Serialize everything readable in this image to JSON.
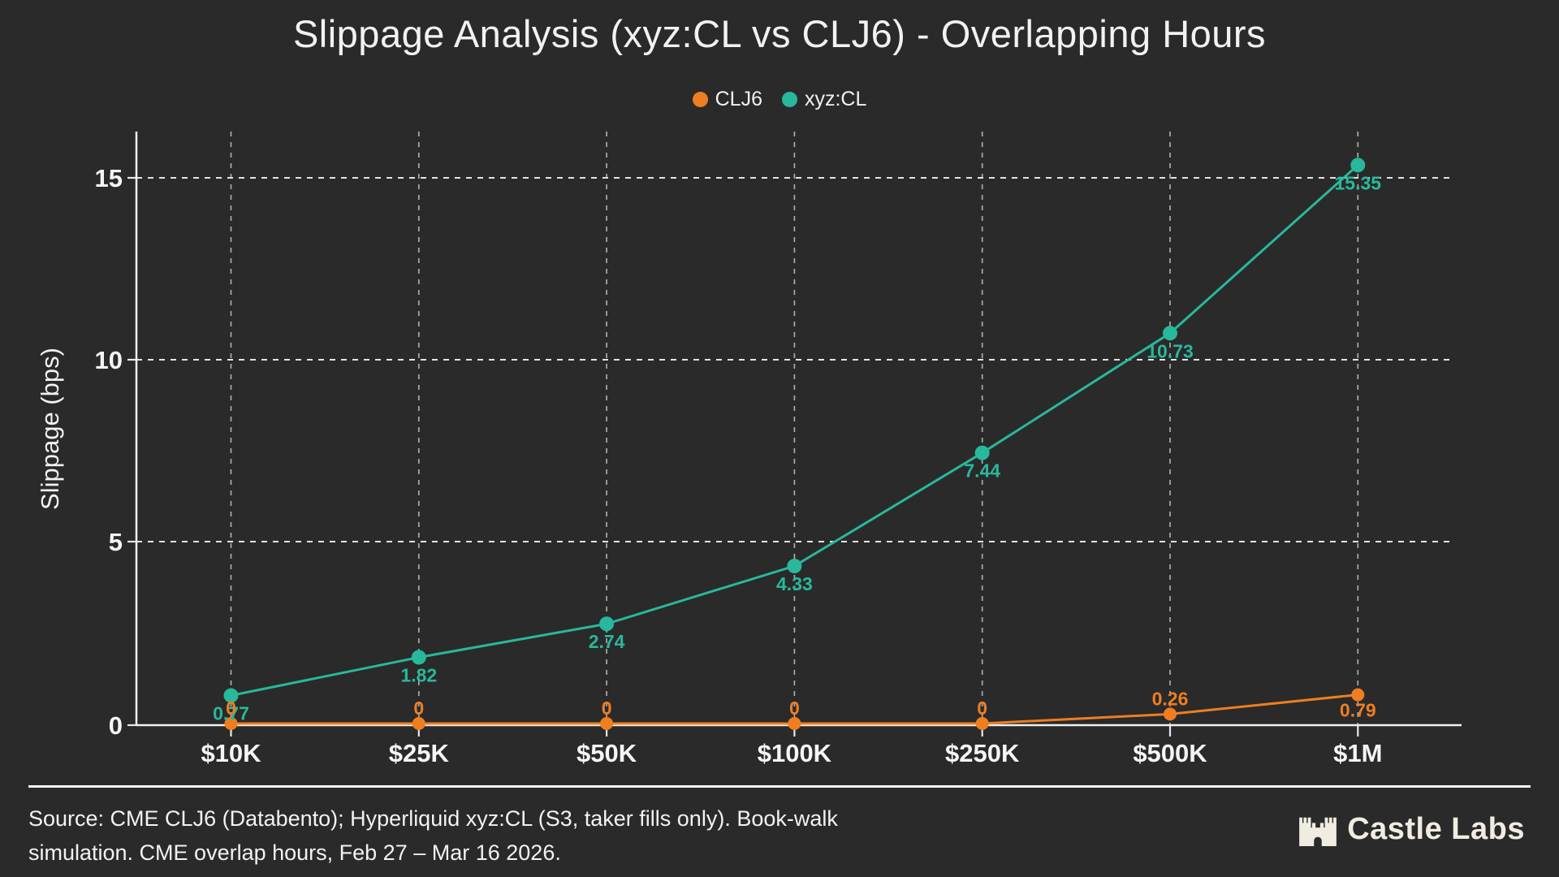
{
  "chart_data": {
    "type": "line",
    "title": "Slippage Analysis (xyz:CL vs CLJ6) - Overlapping Hours",
    "ylabel": "Slippage (bps)",
    "xlabel": "",
    "categories": [
      "$10K",
      "$25K",
      "$50K",
      "$100K",
      "$250K",
      "$500K",
      "$1M"
    ],
    "series": [
      {
        "name": "CLJ6",
        "color": "#ef7e20",
        "values": [
          0,
          0,
          0,
          0,
          0,
          0.26,
          0.79
        ]
      },
      {
        "name": "xyz:CL",
        "color": "#28b89c",
        "values": [
          0.77,
          1.82,
          2.74,
          4.33,
          7.44,
          10.73,
          15.35
        ]
      }
    ],
    "yticks": [
      0,
      5,
      10,
      15
    ],
    "ylim": [
      0,
      16.3
    ],
    "grid": true,
    "legend_position": "top",
    "background_color": "#2a2a2a",
    "axis_color": "#f0f0f0"
  },
  "footer": {
    "line1": "Source: CME CLJ6 (Databento); Hyperliquid xyz:CL (S3, taker fills only). Book-walk",
    "line2": "simulation. CME overlap hours, Feb 27 – Mar 16 2026."
  },
  "brand": {
    "name": "Castle Labs"
  }
}
